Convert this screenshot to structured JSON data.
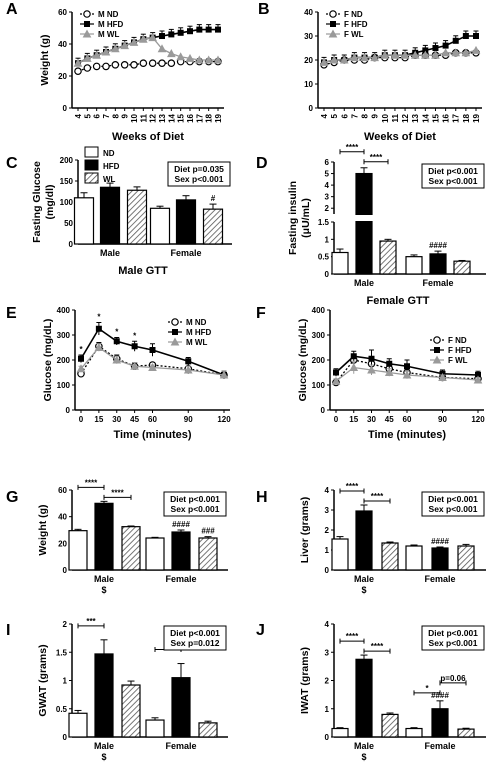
{
  "colors": {
    "ND": "#ffffff",
    "HFD": "#000000",
    "WL": "#9a9a9a",
    "axis": "#000000"
  },
  "chart_data": [
    {
      "id": "A",
      "type": "line",
      "panel": "A",
      "xlabel": "Weeks of Diet",
      "ylabel": "Weight (g)",
      "x": [
        4,
        5,
        6,
        7,
        8,
        9,
        10,
        11,
        12,
        13,
        14,
        15,
        16,
        17,
        18,
        19
      ],
      "xlim": [
        4,
        19
      ],
      "ylim": [
        0,
        60
      ],
      "yticks": [
        0,
        20,
        40,
        60
      ],
      "legend_position": "top-left",
      "series": [
        {
          "name": "M ND",
          "key": "ND",
          "values": [
            23,
            25,
            26,
            26,
            27,
            27,
            27,
            28,
            28,
            28,
            28,
            29,
            29,
            29,
            29,
            29
          ]
        },
        {
          "name": "M HFD",
          "key": "HFD",
          "values": [
            28,
            31,
            33,
            35,
            37,
            39,
            41,
            43,
            44,
            45,
            46,
            47,
            48,
            49,
            49,
            49
          ]
        },
        {
          "name": "M WL",
          "key": "WL",
          "values": [
            28,
            31,
            33,
            35,
            37,
            39,
            41,
            43,
            44,
            37,
            34,
            32,
            31,
            30,
            30,
            30
          ]
        }
      ]
    },
    {
      "id": "B",
      "type": "line",
      "panel": "B",
      "xlabel": "Weeks of Diet",
      "ylabel": "",
      "x": [
        4,
        5,
        6,
        7,
        8,
        9,
        10,
        11,
        12,
        13,
        14,
        15,
        16,
        17,
        18,
        19
      ],
      "xlim": [
        4,
        19
      ],
      "ylim": [
        0,
        40
      ],
      "yticks": [
        0,
        10,
        20,
        30,
        40
      ],
      "legend_position": "top-left",
      "series": [
        {
          "name": "F ND",
          "key": "ND",
          "values": [
            18,
            19,
            20,
            20,
            20,
            21,
            21,
            21,
            21,
            22,
            22,
            22,
            22,
            23,
            23,
            23
          ]
        },
        {
          "name": "F HFD",
          "key": "HFD",
          "values": [
            19,
            20,
            20,
            21,
            21,
            21,
            22,
            22,
            22,
            23,
            24,
            25,
            26,
            28,
            30,
            30
          ]
        },
        {
          "name": "F WL",
          "key": "WL",
          "values": [
            19,
            20,
            20,
            21,
            21,
            21,
            22,
            22,
            22,
            22,
            22,
            22,
            23,
            23,
            23,
            24
          ]
        }
      ]
    },
    {
      "id": "C",
      "type": "bar",
      "panel": "C",
      "ylabel_lines": [
        "Fasting Glucose",
        "(mg/dl)"
      ],
      "categories": [
        "Male",
        "Female"
      ],
      "ylim": [
        0,
        200
      ],
      "yticks": [
        0,
        50,
        100,
        150,
        200
      ],
      "legend": [
        {
          "name": "ND",
          "key": "ND"
        },
        {
          "name": "HFD",
          "key": "HFD"
        },
        {
          "name": "WL",
          "key": "WL"
        }
      ],
      "series": [
        {
          "name": "ND",
          "key": "ND",
          "values": [
            110,
            85
          ],
          "errors": [
            12,
            5
          ]
        },
        {
          "name": "HFD",
          "key": "HFD",
          "values": [
            135,
            105
          ],
          "errors": [
            10,
            10
          ]
        },
        {
          "name": "WL",
          "key": "WL",
          "values": [
            128,
            83
          ],
          "errors": [
            8,
            12
          ]
        }
      ],
      "stats": [
        "Diet p=0.035",
        "Sex p<0.001"
      ],
      "marks": [
        {
          "text": "#",
          "group": 1,
          "bar": 2
        }
      ],
      "below": "Male GTT"
    },
    {
      "id": "D",
      "type": "bar",
      "panel": "D",
      "ylabel_lines": [
        "Fasting insulin",
        "(μU/mL)"
      ],
      "categories": [
        "Male",
        "Female"
      ],
      "broken": true,
      "lower_ylim": [
        0,
        1.5
      ],
      "lower_yticks": [
        0,
        0.5,
        1.0,
        1.5
      ],
      "upper_ylim": [
        1.5,
        6
      ],
      "upper_yticks": [
        2,
        3,
        4,
        5,
        6
      ],
      "series": [
        {
          "name": "ND",
          "key": "ND",
          "values": [
            0.62,
            0.5
          ],
          "errors": [
            0.1,
            0.05
          ]
        },
        {
          "name": "HFD",
          "key": "HFD",
          "values": [
            5.0,
            0.58
          ],
          "errors": [
            0.5,
            0.08
          ]
        },
        {
          "name": "WL",
          "key": "WL",
          "values": [
            0.95,
            0.37
          ],
          "errors": [
            0.05,
            0.02
          ]
        }
      ],
      "stats": [
        "Diet p<0.001",
        "Sex p<0.001"
      ],
      "marks": [
        {
          "text": "####",
          "group": 1,
          "bar": 1
        }
      ],
      "brackets": [
        {
          "text": "****",
          "from": [
            0,
            0
          ],
          "to": [
            0,
            1
          ]
        },
        {
          "text": "****",
          "from": [
            0,
            1
          ],
          "to": [
            0,
            2
          ]
        }
      ],
      "below": "Female GTT"
    },
    {
      "id": "E",
      "type": "line",
      "panel": "E",
      "xlabel": "Time (minutes)",
      "ylabel": "Glucose (mg/dL)",
      "x": [
        0,
        15,
        30,
        45,
        60,
        90,
        120
      ],
      "xlim": [
        0,
        120
      ],
      "xticks": [
        0,
        15,
        30,
        45,
        60,
        90,
        120
      ],
      "ylim": [
        0,
        400
      ],
      "yticks": [
        0,
        100,
        200,
        300,
        400
      ],
      "legend_position": "top-right",
      "series": [
        {
          "name": "M ND",
          "key": "ND",
          "values": [
            145,
            255,
            205,
            175,
            180,
            165,
            140
          ],
          "errors": [
            10,
            15,
            15,
            15,
            10,
            20,
            15
          ]
        },
        {
          "name": "M HFD",
          "key": "HFD",
          "values": [
            205,
            325,
            275,
            255,
            240,
            195,
            140
          ],
          "errors": [
            15,
            25,
            15,
            20,
            25,
            15,
            15
          ]
        },
        {
          "name": "M WL",
          "key": "WL",
          "values": [
            165,
            250,
            200,
            175,
            170,
            160,
            140
          ],
          "errors": [
            10,
            15,
            15,
            15,
            10,
            15,
            15
          ]
        }
      ],
      "marks": [
        {
          "text": "*",
          "x": 0
        },
        {
          "text": "*",
          "x": 15
        },
        {
          "text": "*",
          "x": 30
        },
        {
          "text": "*",
          "x": 45
        }
      ]
    },
    {
      "id": "F",
      "type": "line",
      "panel": "F",
      "xlabel": "Time (minutes)",
      "ylabel": "Glucose (mg/dL)",
      "x": [
        0,
        15,
        30,
        45,
        60,
        90,
        120
      ],
      "xlim": [
        0,
        120
      ],
      "xticks": [
        0,
        15,
        30,
        45,
        60,
        90,
        120
      ],
      "ylim": [
        0,
        400
      ],
      "yticks": [
        0,
        100,
        200,
        300,
        400
      ],
      "legend_position": "right",
      "series": [
        {
          "name": "F ND",
          "key": "ND",
          "values": [
            110,
            200,
            185,
            165,
            150,
            130,
            125
          ],
          "errors": [
            10,
            15,
            20,
            15,
            15,
            10,
            10
          ]
        },
        {
          "name": "F HFD",
          "key": "HFD",
          "values": [
            150,
            215,
            205,
            185,
            175,
            145,
            140
          ],
          "errors": [
            15,
            20,
            35,
            20,
            25,
            15,
            15
          ]
        },
        {
          "name": "F WL",
          "key": "WL",
          "values": [
            115,
            170,
            160,
            150,
            140,
            130,
            120
          ],
          "errors": [
            10,
            25,
            20,
            15,
            15,
            10,
            10
          ]
        }
      ]
    },
    {
      "id": "G",
      "type": "bar",
      "panel": "G",
      "ylabel": "Weight (g)",
      "categories": [
        "Male",
        "Female"
      ],
      "ylim": [
        0,
        60
      ],
      "yticks": [
        0,
        20,
        40,
        60
      ],
      "series": [
        {
          "name": "ND",
          "key": "ND",
          "values": [
            29.5,
            24
          ],
          "errors": [
            1,
            0.5
          ]
        },
        {
          "name": "HFD",
          "key": "HFD",
          "values": [
            50,
            28.5
          ],
          "errors": [
            1.5,
            1.5
          ]
        },
        {
          "name": "WL",
          "key": "WL",
          "values": [
            32.5,
            24
          ],
          "errors": [
            0.5,
            1
          ]
        }
      ],
      "stats": [
        "Diet p<0.001",
        "Sex p<0.001"
      ],
      "marks": [
        {
          "text": "####",
          "group": 1,
          "bar": 1
        },
        {
          "text": "###",
          "group": 1,
          "bar": 2
        }
      ],
      "brackets": [
        {
          "text": "****",
          "from": [
            0,
            0
          ],
          "to": [
            0,
            1
          ]
        },
        {
          "text": "****",
          "from": [
            0,
            1
          ],
          "to": [
            0,
            2
          ]
        }
      ],
      "under": [
        {
          "text": "$",
          "group": 0
        }
      ]
    },
    {
      "id": "H",
      "type": "bar",
      "panel": "H",
      "ylabel": "Liver (grams)",
      "categories": [
        "Male",
        "Female"
      ],
      "ylim": [
        0,
        4
      ],
      "yticks": [
        0,
        1,
        2,
        3,
        4
      ],
      "series": [
        {
          "name": "ND",
          "key": "ND",
          "values": [
            1.55,
            1.2
          ],
          "errors": [
            0.12,
            0.05
          ]
        },
        {
          "name": "HFD",
          "key": "HFD",
          "values": [
            2.95,
            1.1
          ],
          "errors": [
            0.3,
            0.05
          ]
        },
        {
          "name": "WL",
          "key": "WL",
          "values": [
            1.35,
            1.2
          ],
          "errors": [
            0.05,
            0.08
          ]
        }
      ],
      "stats": [
        "Diet p<0.001",
        "Sex p<0.001"
      ],
      "marks": [
        {
          "text": "####",
          "group": 1,
          "bar": 1
        }
      ],
      "brackets": [
        {
          "text": "****",
          "from": [
            0,
            0
          ],
          "to": [
            0,
            1
          ]
        },
        {
          "text": "****",
          "from": [
            0,
            1
          ],
          "to": [
            0,
            2
          ]
        }
      ],
      "under": [
        {
          "text": "$",
          "group": 0
        }
      ]
    },
    {
      "id": "I",
      "type": "bar",
      "panel": "I",
      "ylabel": "GWAT (grams)",
      "categories": [
        "Male",
        "Female"
      ],
      "ylim": [
        0,
        2
      ],
      "yticks": [
        0,
        0.5,
        1.0,
        1.5,
        2.0
      ],
      "series": [
        {
          "name": "ND",
          "key": "ND",
          "values": [
            0.42,
            0.3
          ],
          "errors": [
            0.05,
            0.04
          ]
        },
        {
          "name": "HFD",
          "key": "HFD",
          "values": [
            1.47,
            1.05
          ],
          "errors": [
            0.25,
            0.25
          ]
        },
        {
          "name": "WL",
          "key": "WL",
          "values": [
            0.92,
            0.25
          ],
          "errors": [
            0.07,
            0.03
          ]
        }
      ],
      "stats": [
        "Diet p<0.001",
        "Sex p=0.012"
      ],
      "brackets": [
        {
          "text": "***",
          "from": [
            0,
            0
          ],
          "to": [
            0,
            1
          ]
        },
        {
          "text": "*",
          "from": [
            1,
            0
          ],
          "to": [
            1,
            1
          ]
        }
      ],
      "under": [
        {
          "text": "$",
          "group": 0
        }
      ]
    },
    {
      "id": "J",
      "type": "bar",
      "panel": "J",
      "ylabel": "IWAT (grams)",
      "categories": [
        "Male",
        "Female"
      ],
      "ylim": [
        0,
        4
      ],
      "yticks": [
        0,
        1,
        2,
        3,
        4
      ],
      "series": [
        {
          "name": "ND",
          "key": "ND",
          "values": [
            0.3,
            0.3
          ],
          "errors": [
            0.03,
            0.03
          ]
        },
        {
          "name": "HFD",
          "key": "HFD",
          "values": [
            2.75,
            1.0
          ],
          "errors": [
            0.15,
            0.28
          ]
        },
        {
          "name": "WL",
          "key": "WL",
          "values": [
            0.8,
            0.28
          ],
          "errors": [
            0.05,
            0.03
          ]
        }
      ],
      "stats": [
        "Diet p<0.001",
        "Sex p<0.001"
      ],
      "marks": [
        {
          "text": "####",
          "group": 1,
          "bar": 1
        }
      ],
      "brackets": [
        {
          "text": "****",
          "from": [
            0,
            0
          ],
          "to": [
            0,
            1
          ]
        },
        {
          "text": "****",
          "from": [
            0,
            1
          ],
          "to": [
            0,
            2
          ]
        },
        {
          "text": "*",
          "from": [
            1,
            0
          ],
          "to": [
            1,
            1
          ]
        },
        {
          "text": "p=0.06",
          "from": [
            1,
            1
          ],
          "to": [
            1,
            2
          ]
        }
      ],
      "under": [
        {
          "text": "$",
          "group": 0
        }
      ]
    }
  ]
}
